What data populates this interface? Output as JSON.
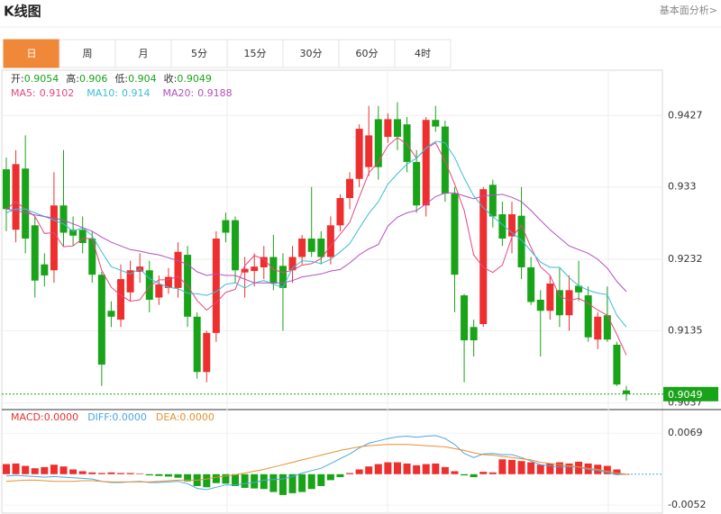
{
  "header": {
    "title": "K线图",
    "link": "基本面分析>"
  },
  "tabs": [
    "日",
    "周",
    "月",
    "5分",
    "15分",
    "30分",
    "60分",
    "4时"
  ],
  "chart_data": {
    "type": "candlestick",
    "info_labels": [
      "开:",
      "高:",
      "低:",
      "收:"
    ],
    "up_color": "#ee2f2f",
    "down_color": "#19a319",
    "ylim": [
      0.9028,
      0.9486
    ],
    "yticks": [
      0.9427,
      0.933,
      0.9232,
      0.9135,
      0.9037
    ],
    "ohlc": [
      [
        0.9354,
        0.937,
        0.927,
        0.93
      ],
      [
        0.9272,
        0.938,
        0.9255,
        0.9361
      ],
      [
        0.9355,
        0.94,
        0.924,
        0.926
      ],
      [
        0.9278,
        0.929,
        0.918,
        0.9203
      ],
      [
        0.9225,
        0.924,
        0.9195,
        0.921
      ],
      [
        0.9217,
        0.935,
        0.92,
        0.9305
      ],
      [
        0.9305,
        0.938,
        0.925,
        0.9268
      ],
      [
        0.9272,
        0.929,
        0.925,
        0.9264
      ],
      [
        0.9272,
        0.929,
        0.924,
        0.9254
      ],
      [
        0.926,
        0.927,
        0.92,
        0.9211
      ],
      [
        0.9211,
        0.9215,
        0.906,
        0.9089
      ],
      [
        0.9162,
        0.9175,
        0.914,
        0.9154
      ],
      [
        0.915,
        0.9225,
        0.914,
        0.9205
      ],
      [
        0.9187,
        0.923,
        0.9175,
        0.9217
      ],
      [
        0.9215,
        0.924,
        0.92,
        0.9222
      ],
      [
        0.9217,
        0.923,
        0.916,
        0.9177
      ],
      [
        0.918,
        0.921,
        0.917,
        0.9198
      ],
      [
        0.9193,
        0.922,
        0.9185,
        0.9208
      ],
      [
        0.9193,
        0.9255,
        0.918,
        0.9242
      ],
      [
        0.9238,
        0.925,
        0.914,
        0.9154
      ],
      [
        0.9154,
        0.916,
        0.907,
        0.9079
      ],
      [
        0.9079,
        0.9135,
        0.9065,
        0.9132
      ],
      [
        0.9132,
        0.927,
        0.912,
        0.926
      ],
      [
        0.9285,
        0.9295,
        0.9255,
        0.9268
      ],
      [
        0.9285,
        0.929,
        0.92,
        0.9217
      ],
      [
        0.9214,
        0.9235,
        0.918,
        0.9219
      ],
      [
        0.9216,
        0.924,
        0.9195,
        0.9222
      ],
      [
        0.9221,
        0.925,
        0.9205,
        0.9235
      ],
      [
        0.9235,
        0.9265,
        0.919,
        0.9199
      ],
      [
        0.9223,
        0.924,
        0.9135,
        0.9193
      ],
      [
        0.9217,
        0.925,
        0.92,
        0.9235
      ],
      [
        0.9235,
        0.9265,
        0.9225,
        0.926
      ],
      [
        0.926,
        0.933,
        0.9235,
        0.9242
      ],
      [
        0.926,
        0.927,
        0.9225,
        0.9235
      ],
      [
        0.9235,
        0.929,
        0.9225,
        0.9278
      ],
      [
        0.9278,
        0.932,
        0.927,
        0.9315
      ],
      [
        0.9315,
        0.935,
        0.93,
        0.9341
      ],
      [
        0.9341,
        0.9415,
        0.933,
        0.9409
      ],
      [
        0.9357,
        0.944,
        0.9345,
        0.94
      ],
      [
        0.9422,
        0.944,
        0.934,
        0.9357
      ],
      [
        0.9398,
        0.943,
        0.939,
        0.9422
      ],
      [
        0.9422,
        0.9445,
        0.938,
        0.9398
      ],
      [
        0.9415,
        0.9425,
        0.935,
        0.9364
      ],
      [
        0.9364,
        0.938,
        0.9295,
        0.9305
      ],
      [
        0.9305,
        0.9425,
        0.929,
        0.9421
      ],
      [
        0.9421,
        0.944,
        0.9405,
        0.9412
      ],
      [
        0.9412,
        0.942,
        0.931,
        0.9321
      ],
      [
        0.9321,
        0.933,
        0.916,
        0.9211
      ],
      [
        0.9183,
        0.9185,
        0.9065,
        0.9122
      ],
      [
        0.914,
        0.915,
        0.91,
        0.9122
      ],
      [
        0.9144,
        0.933,
        0.914,
        0.9327
      ],
      [
        0.9333,
        0.934,
        0.9275,
        0.929
      ],
      [
        0.9293,
        0.931,
        0.925,
        0.926
      ],
      [
        0.9263,
        0.931,
        0.924,
        0.9293
      ],
      [
        0.9291,
        0.933,
        0.9205,
        0.9221
      ],
      [
        0.9221,
        0.9235,
        0.917,
        0.9174
      ],
      [
        0.9177,
        0.919,
        0.91,
        0.9162
      ],
      [
        0.9162,
        0.921,
        0.915,
        0.9199
      ],
      [
        0.919,
        0.922,
        0.914,
        0.9156
      ],
      [
        0.9156,
        0.921,
        0.9135,
        0.919
      ],
      [
        0.9196,
        0.923,
        0.9175,
        0.9187
      ],
      [
        0.9183,
        0.9195,
        0.912,
        0.9126
      ],
      [
        0.9123,
        0.916,
        0.911,
        0.9154
      ],
      [
        0.9156,
        0.9195,
        0.912,
        0.9123
      ],
      [
        0.9116,
        0.912,
        0.906,
        0.9062
      ],
      [
        0.9054,
        0.906,
        0.904,
        0.9049
      ]
    ],
    "series": [
      {
        "name": "MA5:",
        "color": "#e6467e",
        "values": [
          0.93,
          0.931,
          0.93,
          0.929,
          0.9267,
          0.9268,
          0.9249,
          0.925,
          0.926,
          0.926,
          0.9217,
          0.9194,
          0.9183,
          0.9175,
          0.9177,
          0.9195,
          0.9204,
          0.9204,
          0.9209,
          0.9196,
          0.9176,
          0.9163,
          0.9173,
          0.9187,
          0.9191,
          0.9223,
          0.9237,
          0.9232,
          0.9218,
          0.9214,
          0.9217,
          0.9224,
          0.9226,
          0.9233,
          0.925,
          0.9266,
          0.9282,
          0.9316,
          0.9349,
          0.9364,
          0.9386,
          0.9397,
          0.9388,
          0.9369,
          0.9382,
          0.939,
          0.9365,
          0.9334,
          0.9298,
          0.9238,
          0.9221,
          0.9214,
          0.9224,
          0.9262,
          0.9278,
          0.9248,
          0.9222,
          0.921,
          0.9182,
          0.9176,
          0.9179,
          0.9172,
          0.9163,
          0.9156,
          0.913,
          0.9102
        ]
      },
      {
        "name": "MA10:",
        "color": "#3dbcd6",
        "values": [
          0.9295,
          0.93,
          0.93,
          0.9295,
          0.929,
          0.9285,
          0.928,
          0.927,
          0.9275,
          0.9264,
          0.9242,
          0.9222,
          0.9217,
          0.9212,
          0.9219,
          0.9206,
          0.9199,
          0.9194,
          0.9192,
          0.9186,
          0.9185,
          0.9183,
          0.9188,
          0.9198,
          0.92,
          0.9193,
          0.92,
          0.9203,
          0.9198,
          0.9194,
          0.922,
          0.923,
          0.9229,
          0.9226,
          0.9232,
          0.9242,
          0.9253,
          0.9274,
          0.9294,
          0.931,
          0.9334,
          0.9348,
          0.9361,
          0.9369,
          0.9383,
          0.9392,
          0.939,
          0.937,
          0.9342,
          0.9318,
          0.9302,
          0.929,
          0.9279,
          0.9268,
          0.9258,
          0.9243,
          0.9228,
          0.9221,
          0.9221,
          0.9207,
          0.9196,
          0.919,
          0.9186,
          0.9184,
          0.9156,
          0.914
        ]
      },
      {
        "name": "MA20:",
        "color": "#b44fc0",
        "values": [
          0.93,
          0.9298,
          0.9295,
          0.9292,
          0.929,
          0.9288,
          0.9285,
          0.928,
          0.9275,
          0.927,
          0.9262,
          0.9255,
          0.925,
          0.9245,
          0.9243,
          0.924,
          0.9238,
          0.9234,
          0.923,
          0.9225,
          0.9215,
          0.921,
          0.9212,
          0.921,
          0.921,
          0.9205,
          0.92,
          0.92,
          0.92,
          0.92,
          0.9203,
          0.9208,
          0.921,
          0.9212,
          0.9216,
          0.9218,
          0.9227,
          0.9238,
          0.9246,
          0.9252,
          0.9277,
          0.9289,
          0.9295,
          0.9298,
          0.9307,
          0.9317,
          0.9322,
          0.9322,
          0.9318,
          0.9314,
          0.9318,
          0.9319,
          0.932,
          0.9316,
          0.931,
          0.9298,
          0.9285,
          0.9272,
          0.9261,
          0.925,
          0.9245,
          0.924,
          0.9232,
          0.922,
          0.9202,
          0.9188
        ]
      }
    ],
    "macd": {
      "ylim": [
        -0.0067,
        0.0086
      ],
      "yticks": [
        0.0069,
        -0.0052
      ],
      "series": [
        {
          "name": "MACD:",
          "value_label": "0.0000",
          "color": "#ee2f2f",
          "down_color": "#19a319",
          "values": [
            0.0017,
            0.0018,
            0.0014,
            0.001,
            0.0012,
            0.0016,
            0.0013,
            0.0008,
            0.0005,
            0.0003,
            0.0002,
            0.0003,
            0.0002,
            0.0002,
            0.0001,
            -0.0002,
            -0.0003,
            -0.0004,
            -0.0006,
            -0.0012,
            -0.002,
            -0.0022,
            -0.0015,
            -0.0016,
            -0.002,
            -0.0023,
            -0.0024,
            -0.0025,
            -0.003,
            -0.0035,
            -0.0032,
            -0.003,
            -0.0025,
            -0.002,
            -0.001,
            -0.0005,
            0.0002,
            0.0008,
            0.0013,
            0.0017,
            0.002,
            0.002,
            0.0018,
            0.0015,
            0.0017,
            0.0018,
            0.0012,
            0.0005,
            -0.0002,
            -0.0005,
            0.0004,
            0.0003,
            0.0025,
            0.0024,
            0.0022,
            0.002,
            0.0016,
            0.0018,
            0.002,
            0.0018,
            0.0021,
            0.0018,
            0.0016,
            0.0014,
            0.0008,
            0
          ]
        },
        {
          "name": "DIFF:",
          "value_label": "0.0000",
          "color": "#4aa8e0",
          "values": [
            -0.0003,
            -0.0002,
            -0.0003,
            -0.0004,
            -0.0005,
            -0.0004,
            -0.0005,
            -0.0006,
            -0.0007,
            -0.0008,
            -0.0012,
            -0.0014,
            -0.0014,
            -0.0013,
            -0.0012,
            -0.0014,
            -0.0014,
            -0.0013,
            -0.0012,
            -0.0016,
            -0.0024,
            -0.0026,
            -0.0022,
            -0.0018,
            -0.0018,
            -0.0016,
            -0.0014,
            -0.001,
            -0.0009,
            -0.0008,
            -0.0004,
            0.0002,
            0.0006,
            0.001,
            0.0018,
            0.0026,
            0.0034,
            0.0044,
            0.0052,
            0.0056,
            0.006,
            0.0063,
            0.0064,
            0.0062,
            0.0064,
            0.0065,
            0.006,
            0.005,
            0.0035,
            0.0028,
            0.0034,
            0.0035,
            0.0033,
            0.0033,
            0.0028,
            0.0022,
            0.0016,
            0.0014,
            0.0012,
            0.0012,
            0.0012,
            0.0008,
            0.0006,
            0.0003,
            -0.0001,
            0
          ]
        },
        {
          "name": "DEA:",
          "value_label": "0.0000",
          "color": "#e89030",
          "values": [
            -0.0012,
            -0.0011,
            -0.001,
            -0.001,
            -0.0011,
            -0.0012,
            -0.0012,
            -0.0012,
            -0.0011,
            -0.0011,
            -0.0012,
            -0.0013,
            -0.0013,
            -0.0013,
            -0.0013,
            -0.0013,
            -0.0012,
            -0.0011,
            -0.001,
            -0.001,
            -0.001,
            -0.0008,
            -0.0005,
            -0.0003,
            -0.0001,
            0.0002,
            0.0005,
            0.0008,
            0.0012,
            0.0016,
            0.002,
            0.0024,
            0.0028,
            0.0032,
            0.0036,
            0.004,
            0.0043,
            0.0046,
            0.0048,
            0.0049,
            0.005,
            0.005,
            0.005,
            0.0049,
            0.0048,
            0.0047,
            0.0046,
            0.0043,
            0.004,
            0.0036,
            0.0033,
            0.0032,
            0.003,
            0.0028,
            0.0026,
            0.0024,
            0.002,
            0.0018,
            0.0016,
            0.0014,
            0.0012,
            0.001,
            0.0008,
            0.0005,
            0.0002,
            0
          ]
        }
      ]
    }
  }
}
